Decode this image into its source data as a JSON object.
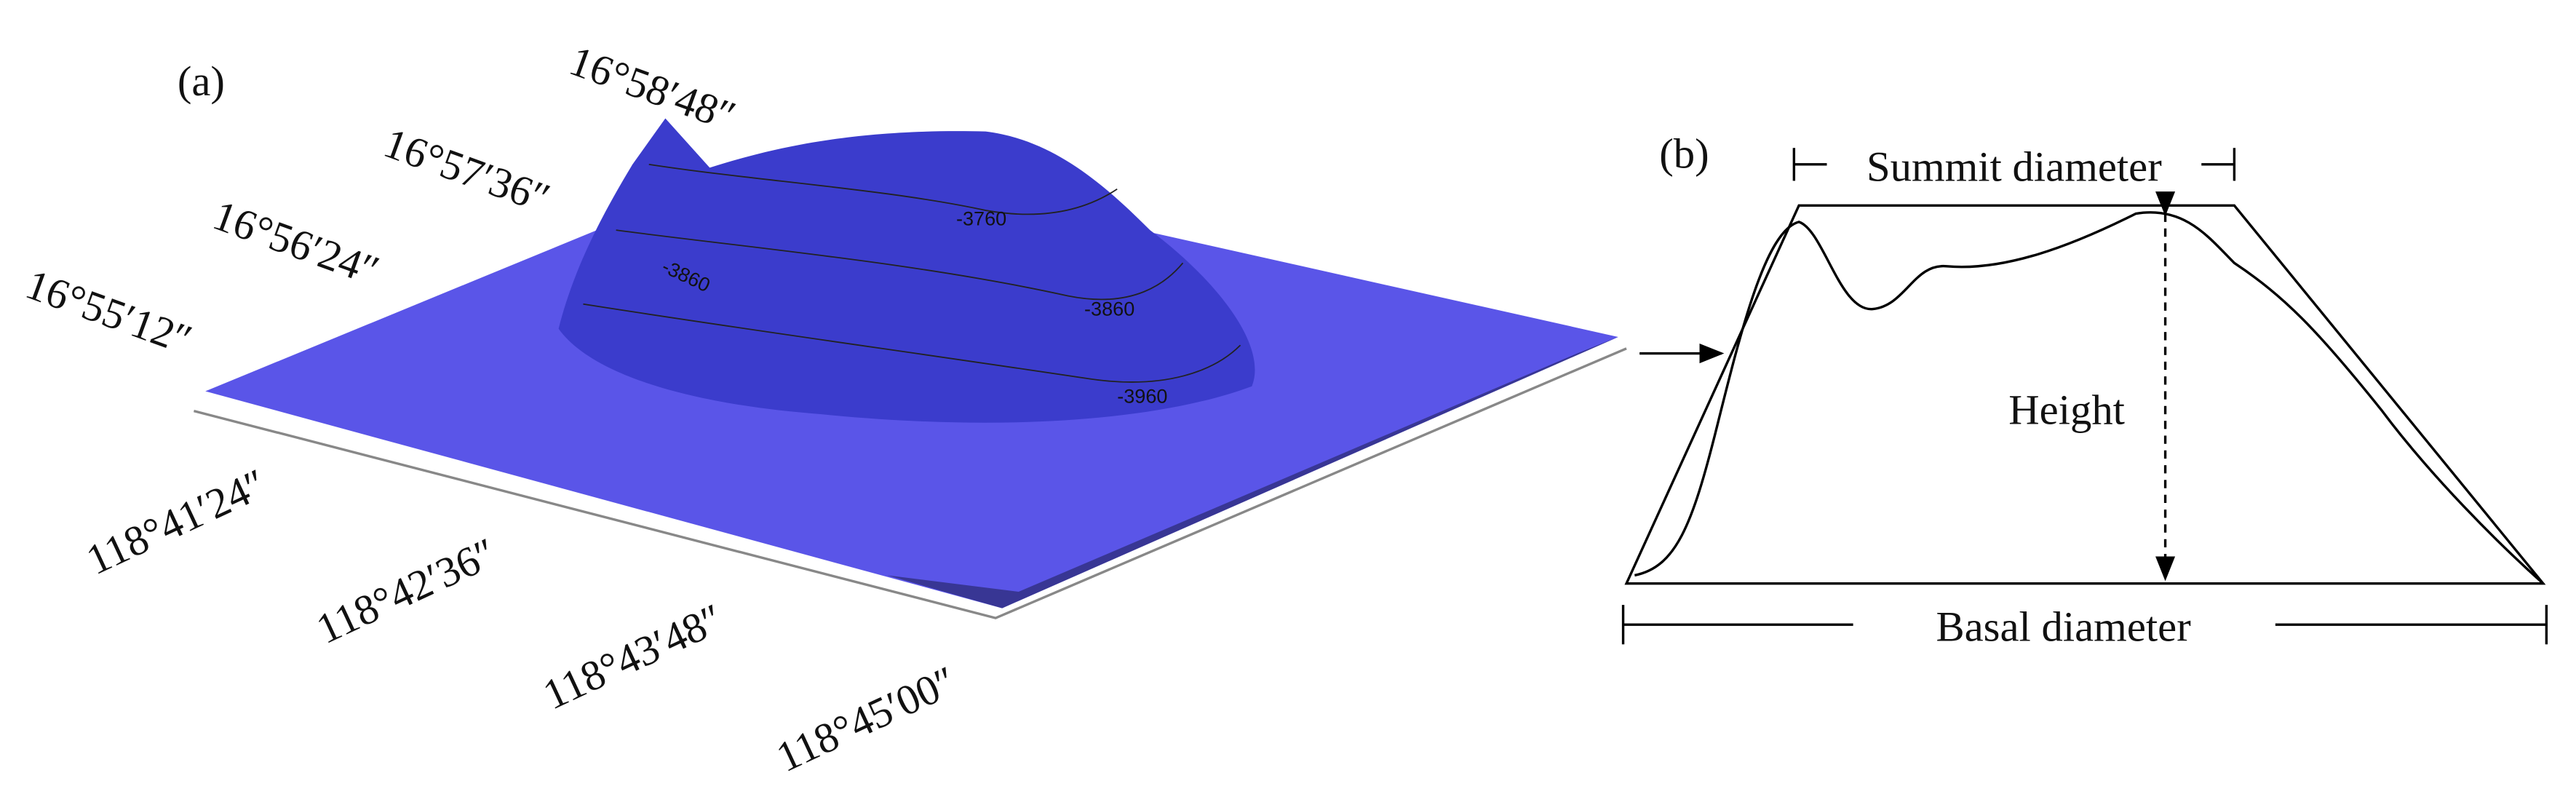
{
  "panel_a": {
    "label": "(a)",
    "latitude_labels": [
      "16°58′48″",
      "16°57′36″",
      "16°56′24″",
      "16°55′12″"
    ],
    "longitude_labels": [
      "118°41′24″",
      "118°42′36″",
      "118°43′48″",
      "118°45′00″"
    ],
    "contour_labels": [
      "-3760",
      "-3860",
      "-3860",
      "-3960"
    ]
  },
  "panel_b": {
    "label": "(b)",
    "summit": "Summit diameter",
    "height": "Height",
    "basal": "Basal diameter"
  }
}
